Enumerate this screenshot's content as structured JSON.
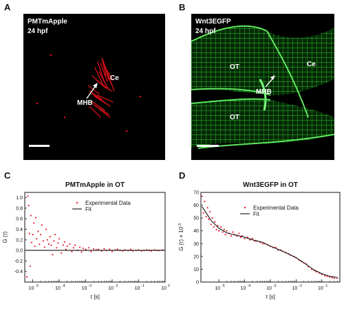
{
  "panels": {
    "a": {
      "letter": "A",
      "line1": "PMTmApple",
      "line2": "24 hpf",
      "label_ce": "Ce",
      "label_mhb": "MHB",
      "color": "#e0101a"
    },
    "b": {
      "letter": "B",
      "line1": "Wnt3EGFP",
      "line2": "24 hpf",
      "label_ot1": "OT",
      "label_ot2": "OT",
      "label_ce": "Ce",
      "label_mhb": "MHB",
      "color": "#22cc22"
    },
    "c": {
      "letter": "C"
    },
    "d": {
      "letter": "D"
    }
  },
  "chart_data": [
    {
      "type": "scatter",
      "title": "PMTmApple in OT",
      "xlabel": "τ [s]",
      "ylabel": "G (τ)",
      "xscale": "log",
      "xlim": [
        5e-06,
        1
      ],
      "ylim": [
        -0.6,
        1.1
      ],
      "x_ticks": [
        1e-05,
        0.0001,
        0.001,
        0.01,
        0.1,
        1
      ],
      "x_tick_labels": [
        "10",
        "10",
        "10",
        "10",
        "10",
        "10"
      ],
      "x_tick_exponents": [
        "-5",
        "-4",
        "-3",
        "-2",
        "-1",
        "0"
      ],
      "y_ticks": [
        -0.4,
        -0.2,
        0.0,
        0.2,
        0.4,
        0.6,
        0.8,
        1.0
      ],
      "y_tick_labels": [
        "-0.4",
        "-0.2",
        "0.0",
        "0.2",
        "0.4",
        "0.6",
        "0.8",
        "1.0"
      ],
      "legend": {
        "position": "top-right",
        "entries": [
          "Experimental Data",
          "Fit"
        ]
      },
      "colors": {
        "data": "#e8202a",
        "fit": "#111111"
      },
      "series": [
        {
          "name": "Experimental Data",
          "kind": "points",
          "x": [
            6e-06,
            6.5e-06,
            7e-06,
            7.5e-06,
            8e-06,
            8.5e-06,
            9e-06,
            1e-05,
            1.1e-05,
            1.2e-05,
            1.3e-05,
            1.4e-05,
            1.6e-05,
            1.8e-05,
            2e-05,
            2.2e-05,
            2.5e-05,
            2.8e-05,
            3.2e-05,
            3.6e-05,
            4e-05,
            4.5e-05,
            5e-05,
            5.6e-05,
            6.3e-05,
            7e-05,
            8e-05,
            9e-05,
            0.0001,
            0.00012,
            0.00014,
            0.00016,
            0.00018,
            0.0002,
            0.00025,
            0.0003,
            0.00035,
            0.0004,
            0.0005,
            0.0006,
            0.0007,
            0.0008,
            0.001,
            0.0013,
            0.0016,
            0.002,
            0.0025,
            0.003,
            0.004,
            0.005,
            0.006,
            0.008,
            0.01,
            0.013,
            0.016,
            0.02,
            0.025,
            0.03,
            0.04,
            0.05,
            0.06,
            0.08,
            0.1,
            0.13,
            0.16,
            0.2,
            0.25,
            0.3,
            0.4,
            0.5,
            0.6,
            0.8
          ],
          "y": [
            -0.5,
            1.03,
            0.85,
            0.32,
            -0.3,
            0.66,
            0.15,
            0.3,
            0.52,
            0.08,
            0.62,
            0.22,
            0.36,
            0.12,
            0.3,
            0.48,
            0.18,
            0.06,
            0.4,
            0.2,
            0.12,
            0.26,
            0.1,
            -0.08,
            0.18,
            0.3,
            0.05,
            0.14,
            0.22,
            -0.05,
            0.1,
            0.16,
            0.02,
            0.08,
            0.12,
            -0.02,
            0.05,
            0.1,
            0.0,
            0.06,
            -0.03,
            0.04,
            0.02,
            0.05,
            -0.02,
            0.03,
            0.01,
            0.02,
            -0.01,
            0.03,
            0.0,
            0.02,
            -0.02,
            0.01,
            0.02,
            0.0,
            -0.01,
            0.01,
            0.0,
            0.02,
            -0.01,
            0.0,
            0.01,
            -0.01,
            0.0,
            0.01,
            0.0,
            -0.01,
            0.01,
            0.0,
            0.0,
            0.01
          ]
        },
        {
          "name": "Fit",
          "kind": "line",
          "x": [
            5e-06,
            1
          ],
          "y": [
            0.0,
            0.0
          ]
        }
      ]
    },
    {
      "type": "scatter",
      "title": "Wnt3EGFP in OT",
      "xlabel": "τ [s]",
      "ylabel": "G (τ) × 10",
      "ylabel_exponent": "-3",
      "xscale": "log",
      "xlim": [
        2e-06,
        0.5
      ],
      "ylim": [
        0,
        70
      ],
      "x_ticks": [
        1e-05,
        0.0001,
        0.001,
        0.01,
        0.1
      ],
      "x_tick_labels": [
        "10",
        "10",
        "10",
        "10",
        "10"
      ],
      "x_tick_exponents": [
        "-5",
        "-4",
        "-3",
        "-2",
        "-1"
      ],
      "y_ticks": [
        0,
        10,
        20,
        30,
        40,
        50,
        60,
        70
      ],
      "y_tick_labels": [
        "0",
        "10",
        "20",
        "30",
        "40",
        "50",
        "60",
        "70"
      ],
      "legend": {
        "position": "top-right",
        "entries": [
          "Experimental Data",
          "Fit"
        ]
      },
      "colors": {
        "data": "#e8202a",
        "fit": "#111111"
      },
      "series": [
        {
          "name": "Experimental Data",
          "kind": "points",
          "x": [
            2.2e-06,
            2.5e-06,
            2.8e-06,
            3.2e-06,
            3.6e-06,
            4e-06,
            4.5e-06,
            5e-06,
            5.6e-06,
            6.3e-06,
            7e-06,
            8e-06,
            9e-06,
            1e-05,
            1.2e-05,
            1.4e-05,
            1.6e-05,
            1.8e-05,
            2e-05,
            2.5e-05,
            3e-05,
            3.5e-05,
            4e-05,
            5e-05,
            6e-05,
            7e-05,
            8e-05,
            0.0001,
            0.00013,
            0.00016,
            0.0002,
            0.00025,
            0.0003,
            0.0004,
            0.0005,
            0.0006,
            0.0008,
            0.001,
            0.0013,
            0.0016,
            0.002,
            0.0025,
            0.003,
            0.004,
            0.005,
            0.006,
            0.008,
            0.01,
            0.013,
            0.016,
            0.02,
            0.025,
            0.03,
            0.04,
            0.05,
            0.06,
            0.08,
            0.1,
            0.13,
            0.16,
            0.2,
            0.25,
            0.3,
            0.4
          ],
          "y": [
            67,
            54,
            63,
            51,
            58,
            49,
            55,
            45,
            50,
            43,
            47,
            41,
            44,
            40,
            43,
            39,
            41,
            37,
            40,
            38,
            36,
            39,
            37,
            36,
            38,
            35,
            36,
            34,
            35,
            33,
            34,
            32,
            32,
            31,
            30,
            30,
            29,
            28,
            27,
            27,
            25,
            25,
            24,
            23,
            22,
            21,
            20,
            19,
            17,
            16,
            15,
            14,
            12,
            10,
            9,
            8,
            7,
            6,
            5,
            4.5,
            4,
            3.5,
            3,
            3
          ]
        },
        {
          "name": "Fit",
          "kind": "line",
          "x": [
            2.2e-06,
            3e-06,
            4e-06,
            5e-06,
            7e-06,
            1e-05,
            1.5e-05,
            2e-05,
            3e-05,
            5e-05,
            0.0001,
            0.0002,
            0.0005,
            0.001,
            0.002,
            0.005,
            0.01,
            0.02,
            0.05,
            0.1,
            0.2,
            0.4
          ],
          "y": [
            59,
            55,
            51,
            48,
            45,
            42,
            40,
            38.5,
            37.5,
            36.5,
            35,
            33,
            31,
            28,
            25.5,
            22,
            19,
            15,
            9.5,
            6.5,
            4.5,
            3.5
          ]
        }
      ]
    }
  ]
}
